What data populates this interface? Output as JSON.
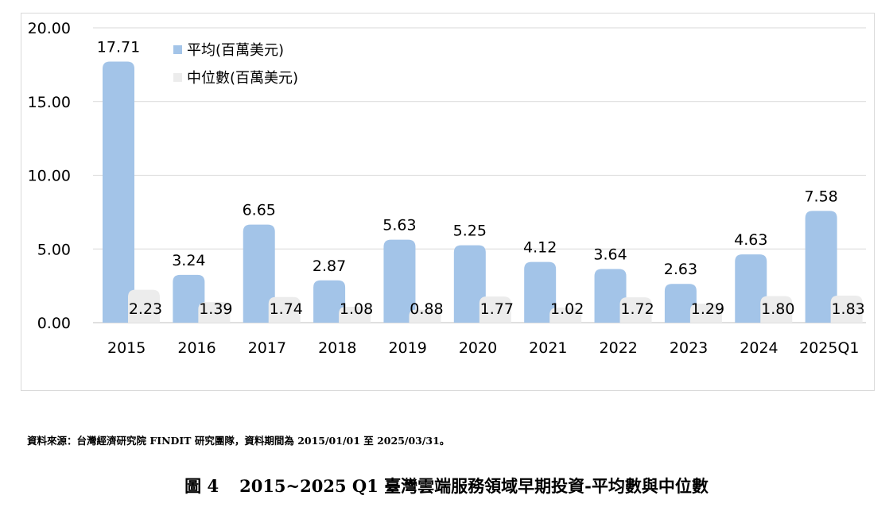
{
  "chart_data": {
    "type": "bar",
    "categories": [
      "2015",
      "2016",
      "2017",
      "2018",
      "2019",
      "2020",
      "2021",
      "2022",
      "2023",
      "2024",
      "2025Q1"
    ],
    "series": [
      {
        "name": "平均(百萬美元)",
        "values": [
          17.71,
          3.24,
          6.65,
          2.87,
          5.63,
          5.25,
          4.12,
          3.64,
          2.63,
          4.63,
          7.58
        ],
        "color": "#a3c4e8"
      },
      {
        "name": "中位數(百萬美元)",
        "values": [
          2.23,
          1.39,
          1.74,
          1.08,
          0.88,
          1.77,
          1.02,
          1.72,
          1.29,
          1.8,
          1.83
        ],
        "color": "#ececec"
      }
    ],
    "ylim": [
      0,
      20
    ],
    "yticks": [
      "0.00",
      "5.00",
      "10.00",
      "15.00",
      "20.00"
    ],
    "value_labels": {
      "mean": [
        "17.71",
        "3.24",
        "6.65",
        "2.87",
        "5.63",
        "5.25",
        "4.12",
        "3.64",
        "2.63",
        "4.63",
        "7.58"
      ],
      "median": [
        "2.23",
        "1.39",
        "1.74",
        "1.08",
        "0.88",
        "1.77",
        "1.02",
        "1.72",
        "1.29",
        "1.80",
        "1.83"
      ]
    },
    "grid": true,
    "legend_position": "top-left"
  },
  "source_note": "資料來源：台灣經濟研究院 FINDIT 研究團隊，資料期間為 2015/01/01 至 2025/03/31。",
  "caption": {
    "number": "圖 4",
    "title": "2015~2025 Q1 臺灣雲端服務領域早期投資-平均數與中位數"
  }
}
